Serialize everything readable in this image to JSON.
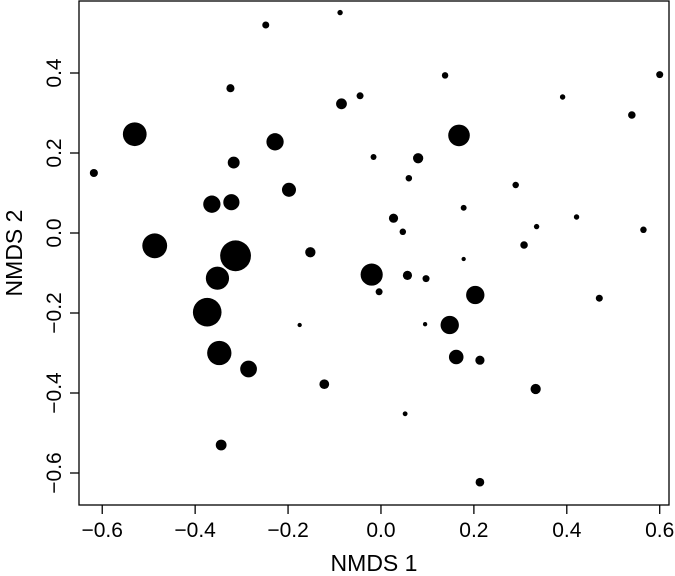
{
  "chart_data": {
    "type": "scatter",
    "title": "",
    "xlabel": "NMDS 1",
    "ylabel": "NMDS 2",
    "xlim": [
      -0.65,
      0.62
    ],
    "ylim": [
      -0.68,
      0.58
    ],
    "xticks": [
      -0.6,
      -0.4,
      -0.2,
      0.0,
      0.2,
      0.4,
      0.6
    ],
    "yticks": [
      -0.6,
      -0.4,
      -0.2,
      0.0,
      0.2,
      0.4
    ],
    "xtick_labels": [
      "−0.6",
      "−0.4",
      "−0.2",
      "0.0",
      "0.2",
      "0.4",
      "0.6"
    ],
    "ytick_labels": [
      "−0.6",
      "−0.4",
      "−0.2",
      "0.0",
      "0.2",
      "0.4"
    ],
    "grid": false,
    "legend": "none",
    "point_color": "#000000",
    "marker_size_note": "point size varies per observation",
    "points": [
      {
        "x": -0.088,
        "y": 0.551,
        "size": 1
      },
      {
        "x": -0.248,
        "y": 0.52,
        "size": 1.3
      },
      {
        "x": 0.138,
        "y": 0.394,
        "size": 1.2
      },
      {
        "x": 0.6,
        "y": 0.396,
        "size": 1.3
      },
      {
        "x": -0.324,
        "y": 0.362,
        "size": 1.5
      },
      {
        "x": -0.045,
        "y": 0.343,
        "size": 1.3
      },
      {
        "x": -0.085,
        "y": 0.323,
        "size": 2.0
      },
      {
        "x": 0.391,
        "y": 0.34,
        "size": 1.0
      },
      {
        "x": 0.54,
        "y": 0.295,
        "size": 1.4
      },
      {
        "x": -0.53,
        "y": 0.247,
        "size": 4.4
      },
      {
        "x": 0.168,
        "y": 0.244,
        "size": 4.0
      },
      {
        "x": -0.228,
        "y": 0.228,
        "size": 3.2
      },
      {
        "x": -0.016,
        "y": 0.19,
        "size": 1.1
      },
      {
        "x": 0.08,
        "y": 0.187,
        "size": 1.9
      },
      {
        "x": -0.317,
        "y": 0.176,
        "size": 2.2
      },
      {
        "x": -0.618,
        "y": 0.15,
        "size": 1.5
      },
      {
        "x": 0.06,
        "y": 0.137,
        "size": 1.2
      },
      {
        "x": 0.29,
        "y": 0.12,
        "size": 1.2
      },
      {
        "x": -0.198,
        "y": 0.108,
        "size": 2.6
      },
      {
        "x": -0.322,
        "y": 0.077,
        "size": 3.0
      },
      {
        "x": -0.364,
        "y": 0.072,
        "size": 3.2
      },
      {
        "x": 0.178,
        "y": 0.063,
        "size": 1.1
      },
      {
        "x": 0.421,
        "y": 0.04,
        "size": 1.0
      },
      {
        "x": 0.027,
        "y": 0.037,
        "size": 1.7
      },
      {
        "x": 0.335,
        "y": 0.016,
        "size": 1.0
      },
      {
        "x": 0.565,
        "y": 0.008,
        "size": 1.2
      },
      {
        "x": 0.047,
        "y": 0.003,
        "size": 1.2
      },
      {
        "x": 0.308,
        "y": -0.03,
        "size": 1.4
      },
      {
        "x": -0.487,
        "y": -0.032,
        "size": 4.6
      },
      {
        "x": -0.152,
        "y": -0.048,
        "size": 1.9
      },
      {
        "x": -0.313,
        "y": -0.057,
        "size": 5.7
      },
      {
        "x": 0.178,
        "y": -0.065,
        "size": 0.8
      },
      {
        "x": -0.02,
        "y": -0.104,
        "size": 4.1
      },
      {
        "x": 0.057,
        "y": -0.106,
        "size": 1.7
      },
      {
        "x": -0.352,
        "y": -0.113,
        "size": 4.3
      },
      {
        "x": 0.097,
        "y": -0.114,
        "size": 1.3
      },
      {
        "x": -0.004,
        "y": -0.147,
        "size": 1.3
      },
      {
        "x": 0.203,
        "y": -0.155,
        "size": 3.4
      },
      {
        "x": 0.47,
        "y": -0.163,
        "size": 1.3
      },
      {
        "x": -0.374,
        "y": -0.198,
        "size": 5.3
      },
      {
        "x": 0.148,
        "y": -0.23,
        "size": 3.4
      },
      {
        "x": -0.175,
        "y": -0.23,
        "size": 0.8
      },
      {
        "x": 0.095,
        "y": -0.228,
        "size": 0.8
      },
      {
        "x": -0.348,
        "y": -0.3,
        "size": 4.5
      },
      {
        "x": 0.162,
        "y": -0.31,
        "size": 2.7
      },
      {
        "x": 0.213,
        "y": -0.318,
        "size": 1.7
      },
      {
        "x": -0.285,
        "y": -0.34,
        "size": 3.1
      },
      {
        "x": -0.122,
        "y": -0.378,
        "size": 1.8
      },
      {
        "x": 0.333,
        "y": -0.39,
        "size": 1.9
      },
      {
        "x": 0.052,
        "y": -0.452,
        "size": 0.9
      },
      {
        "x": -0.344,
        "y": -0.53,
        "size": 2.0
      },
      {
        "x": 0.213,
        "y": -0.623,
        "size": 1.6
      }
    ]
  }
}
